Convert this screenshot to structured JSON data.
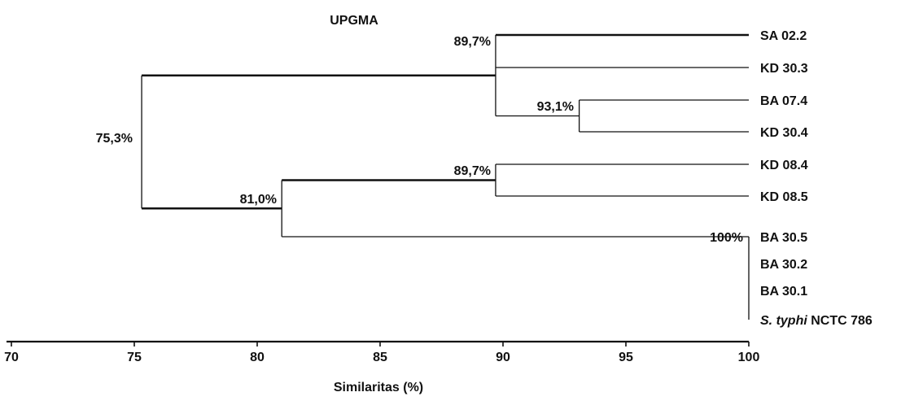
{
  "chart_data": {
    "type": "dendrogram",
    "method": "UPGMA",
    "title": "UPGMA",
    "xlabel": "Similaritas (%)",
    "xlim": [
      70,
      100
    ],
    "ticks": [
      70,
      75,
      80,
      85,
      90,
      95,
      100
    ],
    "leaves": [
      {
        "id": "SA022",
        "label": "SA 02.2"
      },
      {
        "id": "KD303",
        "label": "KD 30.3"
      },
      {
        "id": "BA074",
        "label": "BA 07.4"
      },
      {
        "id": "KD304",
        "label": "KD 30.4"
      },
      {
        "id": "KD084",
        "label": "KD 08.4"
      },
      {
        "id": "KD085",
        "label": "KD 08.5"
      },
      {
        "id": "BA305",
        "label": "BA 30.5"
      },
      {
        "id": "BA302",
        "label": "BA 30.2"
      },
      {
        "id": "BA301",
        "label": "BA 30.1"
      },
      {
        "id": "STY",
        "label": "NCTC 786",
        "label_italic": "S. typhi"
      }
    ],
    "nodes": [
      {
        "id": "n1",
        "similarity": 93.1,
        "label": "93,1%",
        "children": [
          "BA074",
          "KD304"
        ]
      },
      {
        "id": "n2",
        "similarity": 89.7,
        "label": "89,7%",
        "children": [
          "SA022",
          "KD303",
          "n1"
        ]
      },
      {
        "id": "n3",
        "similarity": 89.7,
        "label": "89,7%",
        "children": [
          "KD084",
          "KD085"
        ]
      },
      {
        "id": "n4",
        "similarity": 100,
        "label": "100%",
        "children": [
          "BA305",
          "BA302",
          "BA301",
          "STY"
        ]
      },
      {
        "id": "n5",
        "similarity": 81.0,
        "label": "81,0%",
        "children": [
          "n3",
          "n4"
        ]
      },
      {
        "id": "root",
        "similarity": 75.3,
        "label": "75,3%",
        "children": [
          "n2",
          "n5"
        ]
      }
    ]
  }
}
